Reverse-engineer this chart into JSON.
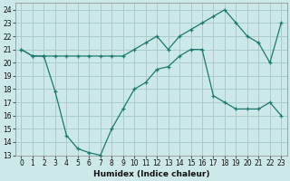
{
  "title": "",
  "xlabel": "Humidex (Indice chaleur)",
  "background_color": "#cce8e8",
  "grid_color": "#aacccc",
  "line_color": "#1a7a6e",
  "xlim": [
    -0.5,
    23.5
  ],
  "ylim": [
    13,
    24.5
  ],
  "xticks": [
    0,
    1,
    2,
    3,
    4,
    5,
    6,
    7,
    8,
    9,
    10,
    11,
    12,
    13,
    14,
    15,
    16,
    17,
    18,
    19,
    20,
    21,
    22,
    23
  ],
  "yticks": [
    13,
    14,
    15,
    16,
    17,
    18,
    19,
    20,
    21,
    22,
    23,
    24
  ],
  "curve1_x": [
    0,
    1,
    2,
    3,
    4,
    5,
    6,
    7,
    8,
    9,
    10,
    11,
    12,
    13,
    14,
    15,
    16,
    17,
    18,
    19,
    20,
    21,
    22,
    23
  ],
  "curve1_y": [
    21.0,
    20.5,
    20.5,
    20.5,
    20.5,
    20.5,
    20.5,
    20.5,
    20.5,
    20.5,
    21.0,
    21.5,
    22.0,
    21.0,
    22.0,
    22.5,
    23.0,
    23.5,
    24.0,
    23.0,
    22.0,
    21.5,
    20.0,
    23.0
  ],
  "curve2_x": [
    0,
    1,
    2,
    3,
    4,
    5,
    6,
    7,
    8,
    9,
    10,
    11,
    12,
    13,
    14,
    15,
    16,
    17,
    18,
    19,
    20,
    21,
    22,
    23
  ],
  "curve2_y": [
    21.0,
    20.5,
    20.5,
    17.8,
    14.5,
    13.5,
    13.2,
    13.0,
    15.0,
    16.5,
    18.0,
    18.5,
    19.5,
    19.7,
    20.5,
    21.0,
    21.0,
    17.5,
    17.0,
    16.5,
    16.5,
    16.5,
    17.0,
    16.0
  ]
}
